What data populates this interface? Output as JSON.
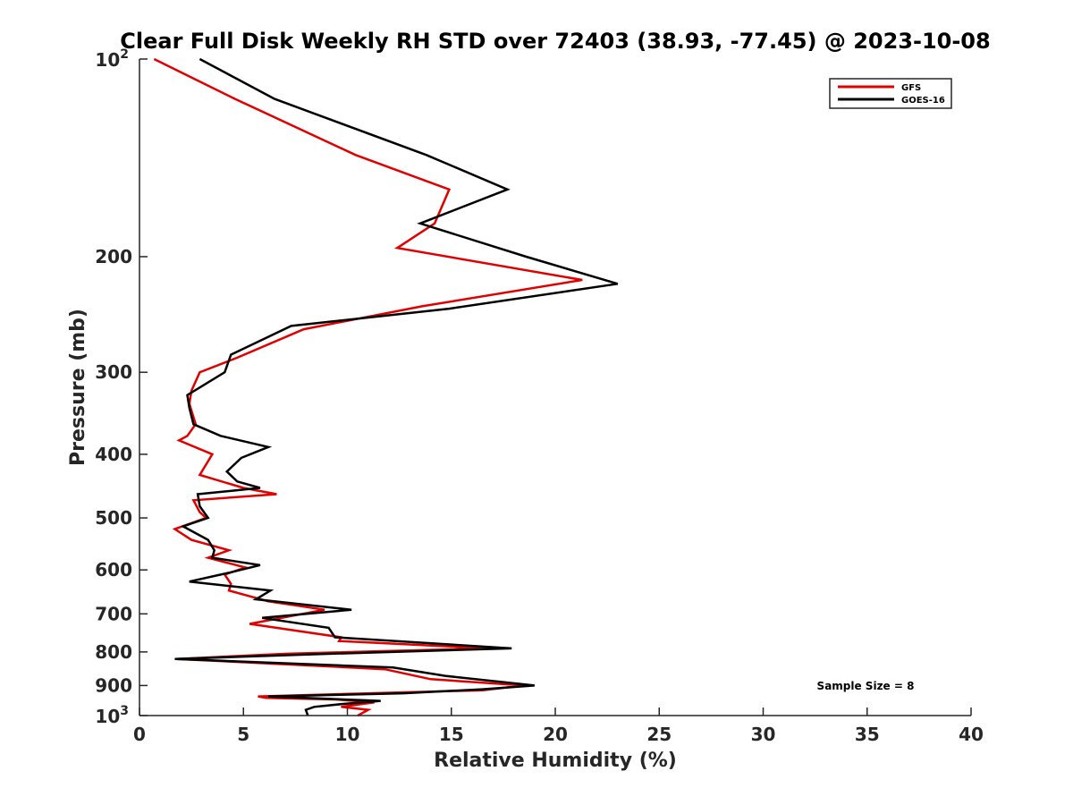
{
  "chart_data": {
    "type": "line",
    "title": "Clear Full Disk Weekly RH STD over 72403 (38.93, -77.45) @ 2023-10-08",
    "xlabel": "Relative Humidity (%)",
    "ylabel": "Pressure (mb)",
    "xlim": [
      0,
      40
    ],
    "ylim": [
      100,
      1000
    ],
    "yscale": "log",
    "y_reversed": true,
    "grid": false,
    "x_ticks": [
      "0",
      "5",
      "10",
      "15",
      "20",
      "25",
      "30",
      "35",
      "40"
    ],
    "x_tick_values": [
      0,
      5,
      10,
      15,
      20,
      25,
      30,
      35,
      40
    ],
    "y_ticks": [
      {
        "value": 100,
        "base": "10",
        "exp": "2",
        "label": ""
      },
      {
        "value": 200,
        "label": "200"
      },
      {
        "value": 300,
        "label": "300"
      },
      {
        "value": 400,
        "label": "400"
      },
      {
        "value": 500,
        "label": "500"
      },
      {
        "value": 600,
        "label": "600"
      },
      {
        "value": 700,
        "label": "700"
      },
      {
        "value": 800,
        "label": "800"
      },
      {
        "value": 900,
        "label": "900"
      },
      {
        "value": 1000,
        "base": "10",
        "exp": "3",
        "label": ""
      }
    ],
    "legend_position": "top-right",
    "annotation": "Sample Size = 8",
    "series": [
      {
        "name": "GFS",
        "color": "#e00000",
        "x": [
          0.7,
          4.6,
          10.4,
          14.9,
          14.2,
          12.4,
          21.3,
          13.6,
          7.9,
          4.7,
          2.9,
          2.5,
          2.4,
          2.7,
          2.3,
          1.9,
          3.5,
          2.9,
          5.0,
          6.6,
          2.6,
          2.9,
          3.2,
          1.7,
          2.5,
          4.3,
          3.3,
          5.1,
          4.1,
          4.4,
          4.3,
          6.2,
          8.9,
          5.3,
          9.7,
          9.6,
          16.8,
          7.1,
          1.8,
          11.8,
          14.0,
          18.5,
          16.5,
          5.7,
          6.1,
          9.4,
          11.3,
          9.7,
          11.0,
          10.5
        ],
        "y": [
          100,
          115,
          140,
          158,
          178,
          194,
          217,
          238,
          258,
          285,
          300,
          320,
          335,
          360,
          375,
          381,
          400,
          430,
          450,
          460,
          470,
          490,
          500,
          520,
          540,
          560,
          575,
          595,
          610,
          630,
          645,
          670,
          690,
          725,
          760,
          770,
          790,
          805,
          820,
          850,
          880,
          900,
          915,
          935,
          940,
          945,
          955,
          970,
          980,
          1000
        ]
      },
      {
        "name": "GOES-16",
        "color": "#000000",
        "x": [
          2.9,
          6.5,
          13.8,
          17.7,
          13.5,
          18.6,
          23.0,
          14.9,
          7.3,
          4.4,
          4.1,
          2.3,
          2.4,
          2.6,
          3.9,
          6.2,
          4.9,
          4.2,
          4.7,
          5.8,
          2.8,
          2.9,
          3.3,
          2.1,
          3.3,
          3.6,
          3.5,
          5.8,
          4.4,
          2.4,
          6.3,
          5.6,
          10.2,
          5.9,
          9.1,
          9.4,
          17.9,
          9.2,
          1.7,
          12.2,
          14.7,
          19.0,
          16.5,
          12.7,
          6.2,
          11.6,
          9.8,
          8.4,
          8.0,
          8.1
        ],
        "y": [
          100,
          115,
          140,
          158,
          178,
          200,
          220,
          240,
          255,
          282,
          300,
          325,
          340,
          360,
          375,
          390,
          405,
          425,
          440,
          450,
          460,
          480,
          500,
          515,
          540,
          560,
          575,
          590,
          605,
          625,
          645,
          665,
          690,
          710,
          735,
          760,
          790,
          805,
          820,
          845,
          870,
          900,
          912,
          925,
          935,
          950,
          960,
          970,
          980,
          1000
        ]
      }
    ]
  }
}
